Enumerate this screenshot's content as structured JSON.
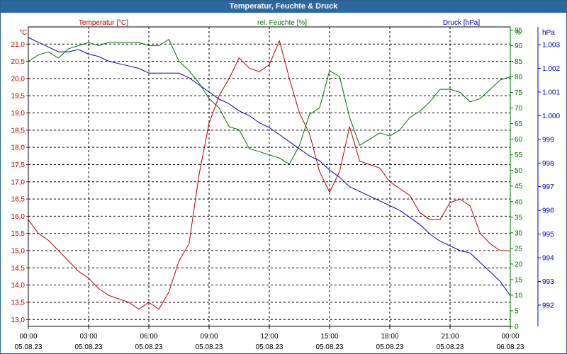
{
  "title": "Temperatur, Feuchte & Druck",
  "colors": {
    "temperature": "#b00000",
    "humidity": "#007000",
    "pressure": "#0000b0",
    "title_bg": "#2d67a0",
    "grid": "#000000"
  },
  "chart_data": {
    "type": "line",
    "grid": true,
    "x": {
      "range": [
        "05.08.23 00:00",
        "06.08.23 00:00"
      ],
      "ticks": [
        {
          "time": "00:00",
          "date": "05.08.23"
        },
        {
          "time": "03:00",
          "date": "05.08.23"
        },
        {
          "time": "06:00",
          "date": "05.08.23"
        },
        {
          "time": "09:00",
          "date": "05.08.23"
        },
        {
          "time": "12:00",
          "date": "05.08.23"
        },
        {
          "time": "15:00",
          "date": "05.08.23"
        },
        {
          "time": "18:00",
          "date": "05.08.23"
        },
        {
          "time": "21:00",
          "date": "05.08.23"
        },
        {
          "time": "00:00",
          "date": "06.08.23"
        }
      ]
    },
    "axes": {
      "temperature": {
        "unit": "°C",
        "ylim": [
          12.8,
          21.5
        ],
        "ticks": [
          "13,0",
          "13,5",
          "14,0",
          "14,5",
          "15,0",
          "15,5",
          "16,0",
          "16,5",
          "17,0",
          "17,5",
          "18,0",
          "18,5",
          "19,0",
          "19,5",
          "20,0",
          "20,5",
          "21,0"
        ]
      },
      "humidity": {
        "unit": "%",
        "ylim": [
          0,
          96
        ],
        "ticks": [
          "0",
          "5",
          "10",
          "15",
          "20",
          "25",
          "30",
          "35",
          "40",
          "45",
          "50",
          "55",
          "60",
          "65",
          "70",
          "75",
          "80",
          "85",
          "90",
          "95"
        ]
      },
      "pressure": {
        "unit": "hPa",
        "ylim": [
          991.1,
          1003.75
        ],
        "ticks": [
          "992",
          "993",
          "994",
          "995",
          "996",
          "997",
          "998",
          "999",
          "1.000",
          "1.001",
          "1.002",
          "1.003"
        ]
      }
    },
    "series": [
      {
        "name": "Temperatur [°C]",
        "axis": "temperature",
        "points": [
          [
            0,
            15.9
          ],
          [
            0.5,
            15.5
          ],
          [
            1,
            15.3
          ],
          [
            1.5,
            15.0
          ],
          [
            2,
            14.7
          ],
          [
            2.5,
            14.4
          ],
          [
            3,
            14.2
          ],
          [
            3.5,
            13.9
          ],
          [
            4,
            13.7
          ],
          [
            4.5,
            13.6
          ],
          [
            5,
            13.5
          ],
          [
            5.5,
            13.3
          ],
          [
            6,
            13.5
          ],
          [
            6.5,
            13.3
          ],
          [
            7,
            13.8
          ],
          [
            7.5,
            14.7
          ],
          [
            8,
            15.2
          ],
          [
            8.5,
            17.2
          ],
          [
            9,
            18.7
          ],
          [
            9.5,
            19.5
          ],
          [
            10,
            20.0
          ],
          [
            10.5,
            20.6
          ],
          [
            11,
            20.3
          ],
          [
            11.5,
            20.2
          ],
          [
            12,
            20.4
          ],
          [
            12.5,
            21.1
          ],
          [
            13,
            20.0
          ],
          [
            13.5,
            19.0
          ],
          [
            14,
            18.4
          ],
          [
            14.5,
            17.3
          ],
          [
            15,
            16.7
          ],
          [
            15.5,
            17.3
          ],
          [
            16,
            18.6
          ],
          [
            16.5,
            17.6
          ],
          [
            17,
            17.5
          ],
          [
            17.5,
            17.4
          ],
          [
            18,
            17.0
          ],
          [
            18.5,
            16.8
          ],
          [
            19,
            16.6
          ],
          [
            19.5,
            16.1
          ],
          [
            20,
            15.9
          ],
          [
            20.5,
            15.9
          ],
          [
            21,
            16.4
          ],
          [
            21.5,
            16.5
          ],
          [
            22,
            16.3
          ],
          [
            22.5,
            15.5
          ],
          [
            23,
            15.2
          ],
          [
            23.5,
            15.0
          ],
          [
            24,
            15.0
          ]
        ]
      },
      {
        "name": "rel. Feuchte [%]",
        "axis": "humidity",
        "points": [
          [
            0,
            85
          ],
          [
            0.5,
            87
          ],
          [
            1,
            88
          ],
          [
            1.5,
            86
          ],
          [
            2,
            89
          ],
          [
            2.5,
            90
          ],
          [
            3,
            91
          ],
          [
            3.5,
            90
          ],
          [
            4,
            91
          ],
          [
            4.5,
            91
          ],
          [
            5,
            91
          ],
          [
            5.5,
            91
          ],
          [
            6,
            90
          ],
          [
            6.5,
            90
          ],
          [
            7,
            92
          ],
          [
            7.5,
            85
          ],
          [
            8,
            82
          ],
          [
            8.5,
            78
          ],
          [
            9,
            73
          ],
          [
            9.5,
            70
          ],
          [
            10,
            64
          ],
          [
            10.5,
            63
          ],
          [
            11,
            57
          ],
          [
            11.5,
            56
          ],
          [
            12,
            55
          ],
          [
            12.5,
            54
          ],
          [
            13,
            52
          ],
          [
            13.5,
            58
          ],
          [
            14,
            68
          ],
          [
            14.5,
            70
          ],
          [
            15,
            82
          ],
          [
            15.5,
            80
          ],
          [
            16,
            67
          ],
          [
            16.5,
            58
          ],
          [
            17,
            60
          ],
          [
            17.5,
            62
          ],
          [
            18,
            61
          ],
          [
            18.5,
            63
          ],
          [
            19,
            67
          ],
          [
            19.5,
            69
          ],
          [
            20,
            72
          ],
          [
            20.5,
            76
          ],
          [
            21,
            76
          ],
          [
            21.5,
            75
          ],
          [
            22,
            72
          ],
          [
            22.5,
            73
          ],
          [
            23,
            76
          ],
          [
            23.5,
            79
          ],
          [
            24,
            80
          ]
        ]
      },
      {
        "name": "Druck [hPa]",
        "axis": "pressure",
        "points": [
          [
            0,
            1003.3
          ],
          [
            0.5,
            1003.1
          ],
          [
            1,
            1002.9
          ],
          [
            1.5,
            1002.7
          ],
          [
            2,
            1002.7
          ],
          [
            2.5,
            1002.8
          ],
          [
            3,
            1002.6
          ],
          [
            3.5,
            1002.5
          ],
          [
            4,
            1002.3
          ],
          [
            4.5,
            1002.2
          ],
          [
            5,
            1002.1
          ],
          [
            5.5,
            1002.0
          ],
          [
            6,
            1001.8
          ],
          [
            6.5,
            1001.8
          ],
          [
            7,
            1001.8
          ],
          [
            7.5,
            1001.8
          ],
          [
            8,
            1001.6
          ],
          [
            8.5,
            1001.3
          ],
          [
            9,
            1001.0
          ],
          [
            9.5,
            1000.7
          ],
          [
            10,
            1000.5
          ],
          [
            10.5,
            1000.2
          ],
          [
            11,
            1000.0
          ],
          [
            11.5,
            999.7
          ],
          [
            12,
            999.5
          ],
          [
            12.5,
            999.2
          ],
          [
            13,
            998.9
          ],
          [
            13.5,
            998.6
          ],
          [
            14,
            998.3
          ],
          [
            14.5,
            998.1
          ],
          [
            15,
            997.7
          ],
          [
            15.5,
            997.4
          ],
          [
            16,
            997.0
          ],
          [
            16.5,
            996.8
          ],
          [
            17,
            996.6
          ],
          [
            17.5,
            996.4
          ],
          [
            18,
            996.2
          ],
          [
            18.5,
            996.0
          ],
          [
            19,
            995.7
          ],
          [
            19.5,
            995.4
          ],
          [
            20,
            995.0
          ],
          [
            20.5,
            994.7
          ],
          [
            21,
            994.5
          ],
          [
            21.5,
            994.3
          ],
          [
            22,
            994.2
          ],
          [
            22.5,
            993.8
          ],
          [
            23,
            993.4
          ],
          [
            23.5,
            993.0
          ],
          [
            24,
            992.4
          ]
        ]
      }
    ]
  }
}
